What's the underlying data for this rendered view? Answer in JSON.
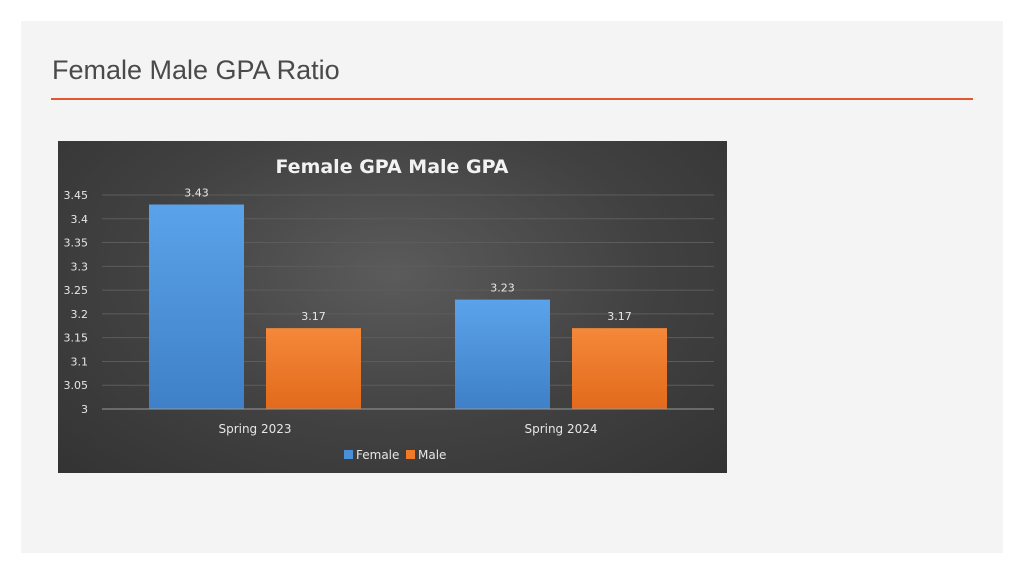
{
  "slide": {
    "title": "Female Male GPA Ratio",
    "accent_color": "#e4572e",
    "background_color": "#f4f4f4"
  },
  "chart_data": {
    "type": "bar",
    "title": "Female GPA Male GPA",
    "categories": [
      "Spring 2023",
      "Spring 2024"
    ],
    "series": [
      {
        "name": "Female",
        "values": [
          3.43,
          3.23
        ],
        "color": "#4a90d9"
      },
      {
        "name": "Male",
        "values": [
          3.17,
          3.17
        ],
        "color": "#f07a26"
      }
    ],
    "data_labels": [
      [
        "3.43",
        "3.23"
      ],
      [
        "3.17",
        "3.17"
      ]
    ],
    "yticks": [
      "3",
      "3.05",
      "3.1",
      "3.15",
      "3.2",
      "3.25",
      "3.3",
      "3.35",
      "3.4",
      "3.45"
    ],
    "ylim": [
      3,
      3.45
    ],
    "xlabel": "",
    "ylabel": "",
    "grid": true,
    "legend_position": "bottom",
    "background": "dark"
  }
}
